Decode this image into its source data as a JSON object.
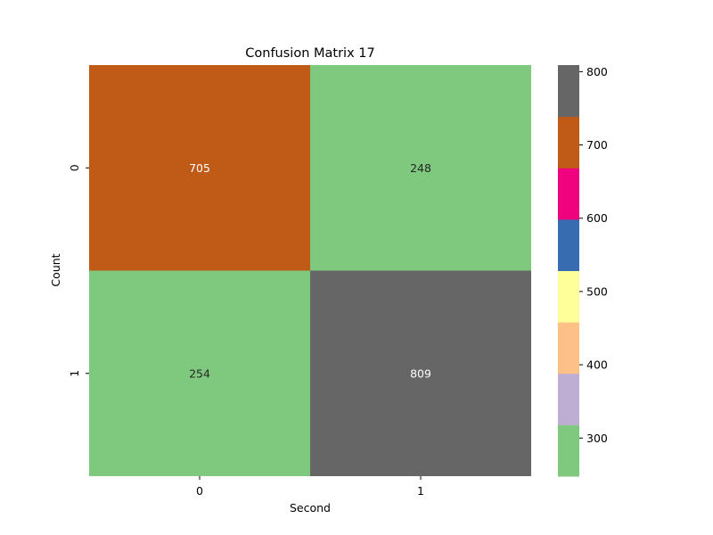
{
  "chart_data": {
    "type": "heatmap",
    "title": "Confusion Matrix 17",
    "xlabel": "Second",
    "ylabel": "Count",
    "x_categories": [
      "0",
      "1"
    ],
    "y_categories": [
      "0",
      "1"
    ],
    "values": [
      [
        705,
        248
      ],
      [
        254,
        809
      ]
    ],
    "value_range": [
      248,
      809
    ],
    "colorbar": {
      "ticks": [
        300,
        400,
        500,
        600,
        700,
        800
      ],
      "tick_labels": [
        "300",
        "400",
        "500",
        "600",
        "700",
        "800"
      ],
      "palette": [
        "#7fc97f",
        "#beaed4",
        "#fdc086",
        "#ffff99",
        "#386cb0",
        "#f0027f",
        "#bf5b17",
        "#666666"
      ]
    },
    "cell_text_colors": {
      "dark_background": "#ffffff",
      "light_background": "#262626"
    }
  }
}
